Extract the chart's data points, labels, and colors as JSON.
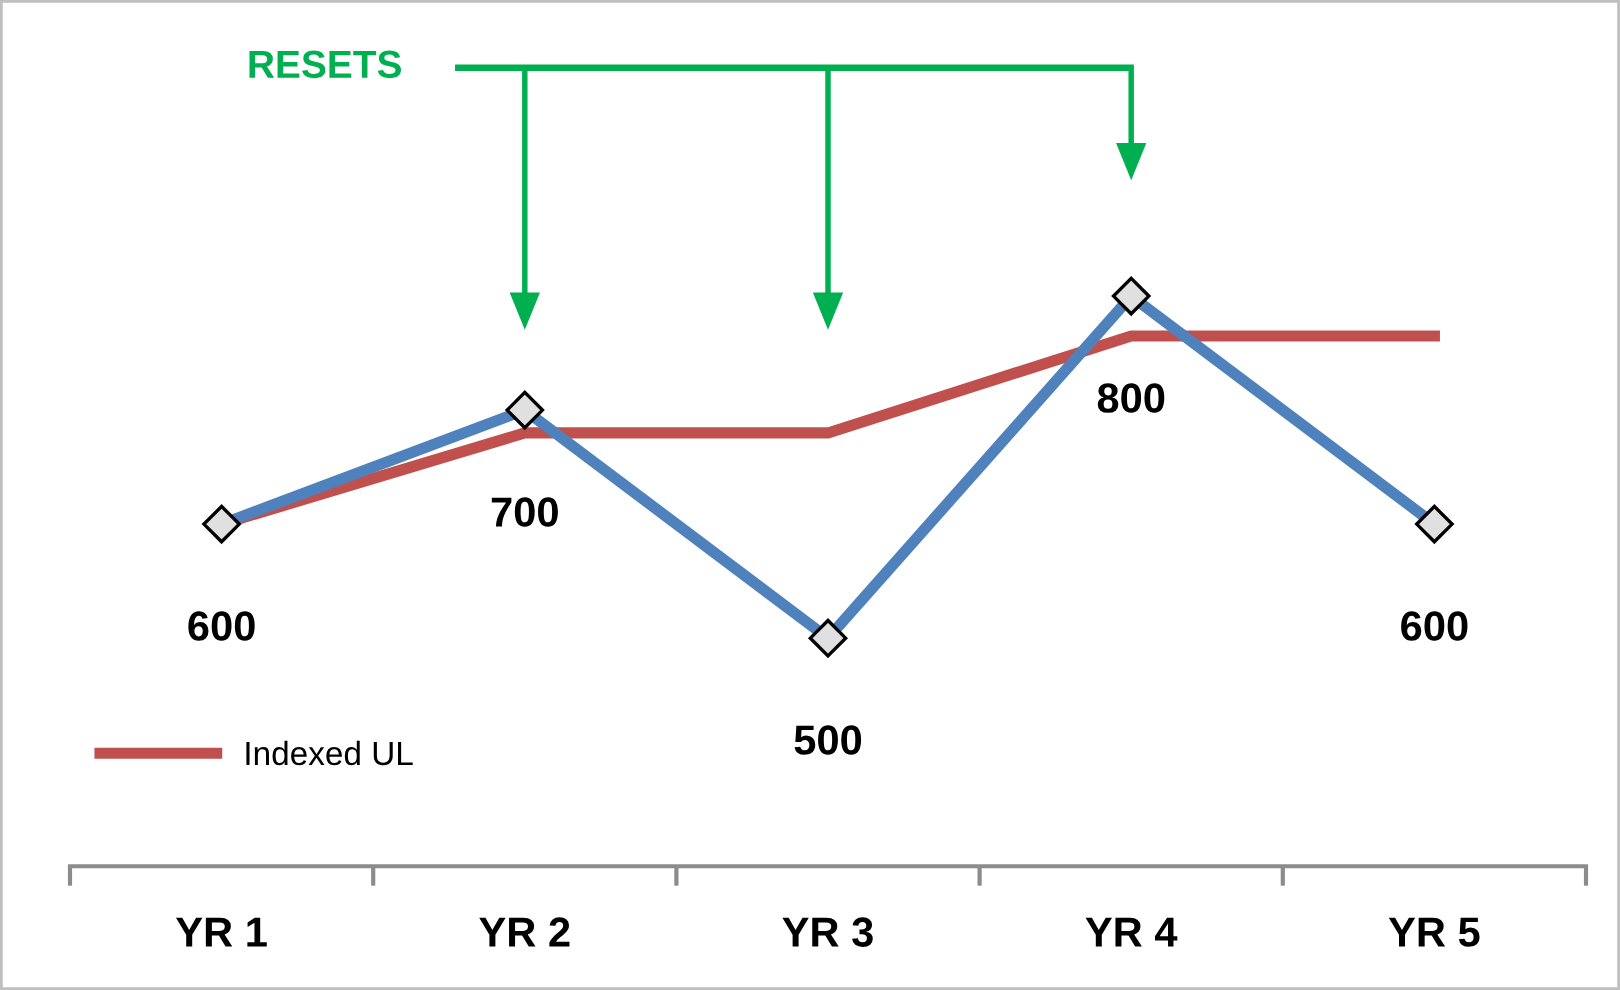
{
  "chart_data": {
    "type": "line",
    "categories": [
      "YR 1",
      "YR 2",
      "YR 3",
      "YR 4",
      "YR 5"
    ],
    "series": [
      {
        "color": "#4f81bd",
        "values": [
          600,
          700,
          500,
          800,
          600
        ],
        "marker": "diamond",
        "value_labels": [
          "600",
          "700",
          "500",
          "800",
          "600"
        ]
      },
      {
        "name": "Indexed UL",
        "color": "#c0504d",
        "values": [
          600,
          680,
          680,
          765,
          765
        ],
        "marker": "none"
      }
    ],
    "tick_labels": "x",
    "grid": false,
    "legend": "bottom left",
    "annotations": [
      "RESETS"
    ]
  }
}
